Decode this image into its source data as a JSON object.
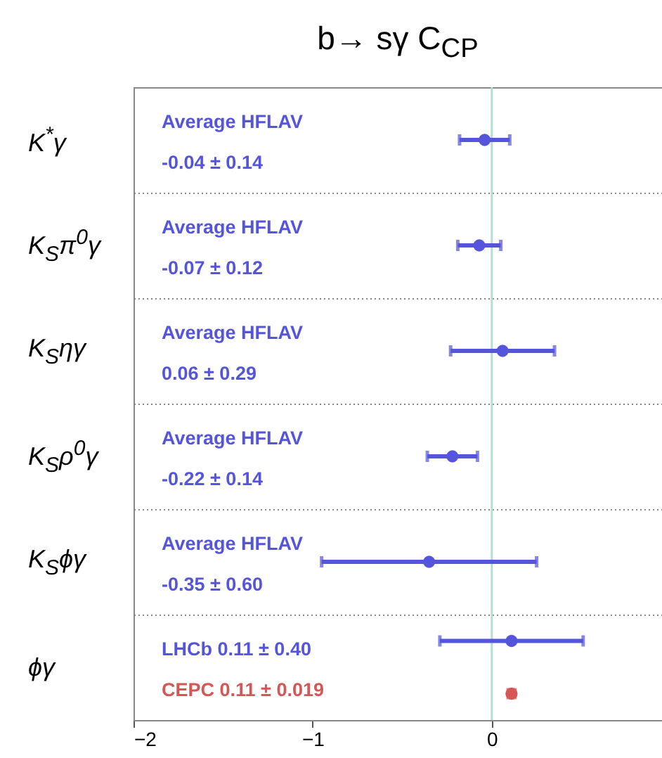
{
  "chart_data": {
    "type": "scatter",
    "orientation": "horizontal",
    "title": "b→ sγ   C$_{CP}$",
    "categories": [
      "K$^{*}$γ",
      "K$_{S}$π$^{0}$γ",
      "K$_{S}$ηγ",
      "K$_{S}$ρ$^{0}$γ",
      "K$_{S}$ϕγ",
      "ϕγ"
    ],
    "series": [
      {
        "color": "#5454dc",
        "values": [
          -0.04,
          -0.07,
          0.06,
          -0.22,
          -0.35,
          null
        ],
        "errors": [
          0.14,
          0.12,
          0.29,
          0.14,
          0.6,
          null
        ]
      },
      {
        "color": "#5454dc",
        "values": [
          null,
          null,
          null,
          null,
          null,
          0.11
        ],
        "errors": [
          null,
          null,
          null,
          null,
          null,
          0.4
        ]
      },
      {
        "color": "#d65656",
        "values": [
          null,
          null,
          null,
          null,
          null,
          0.11
        ],
        "errors": [
          null,
          null,
          null,
          null,
          null,
          0.019
        ]
      }
    ],
    "xlim": [
      -2,
      0.95
    ],
    "xticks": [
      {
        "value": -2,
        "label": "−2"
      },
      {
        "value": -1,
        "label": "−1"
      },
      0
    ],
    "ref_lines": [
      {
        "axis": "x",
        "value": 0,
        "color": "#b8dcd0"
      }
    ],
    "annotations": [
      "Average HFLAV",
      "-0.04 ± 0.14",
      "Average HFLAV",
      "-0.07 ± 0.12",
      "Average HFLAV",
      "0.06 ± 0.29",
      "Average HFLAV",
      "-0.22 ± 0.14",
      "Average HFLAV",
      "-0.35 ± 0.60",
      "LHCb 0.11 ± 0.40",
      "CEPC 0.11 ± 0.019"
    ],
    "grid": "y",
    "marker": "circle"
  }
}
